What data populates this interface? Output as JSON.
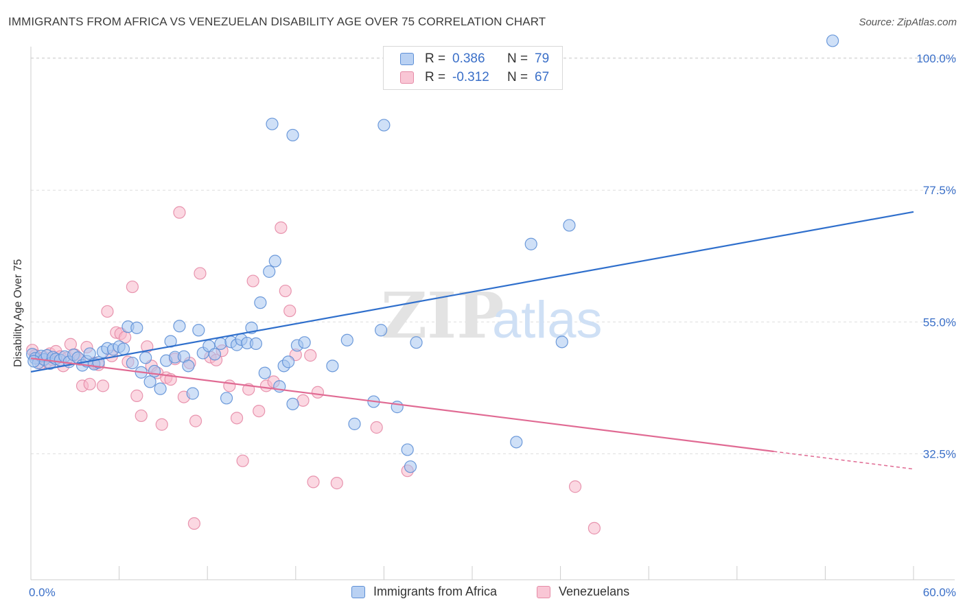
{
  "header": {
    "title": "IMMIGRANTS FROM AFRICA VS VENEZUELAN DISABILITY AGE OVER 75 CORRELATION CHART",
    "source": "Source: ZipAtlas.com"
  },
  "watermark": {
    "zip": "ZIP",
    "atlas": "atlas"
  },
  "legend_top": {
    "rows": [
      {
        "r_label": "R =",
        "r_value": "0.386",
        "n_label": "N =",
        "n_value": "79"
      },
      {
        "r_label": "R =",
        "r_value": "-0.312",
        "n_label": "N =",
        "n_value": "67"
      }
    ]
  },
  "colors": {
    "africa_fill": "#a8c6f0",
    "africa_stroke": "#5d8fd6",
    "africa_line": "#2f6fcc",
    "venez_fill": "#f7b8cb",
    "venez_stroke": "#e58aa6",
    "venez_line": "#e06a93",
    "tick_label": "#3a6fc8",
    "grid": "#dddddd"
  },
  "chart_data": {
    "type": "scatter",
    "title": "IMMIGRANTS FROM AFRICA VS VENEZUELAN DISABILITY AGE OVER 75 CORRELATION CHART",
    "xlabel": "",
    "ylabel": "Disability Age Over 75",
    "xlim": [
      0,
      60
    ],
    "ylim": [
      11,
      102
    ],
    "x_tick_labels": [
      "0.0%",
      "60.0%"
    ],
    "y_ticks": [
      32.5,
      55.0,
      77.5,
      100.0
    ],
    "y_tick_labels": [
      "32.5%",
      "55.0%",
      "77.5%",
      "100.0%"
    ],
    "grid": true,
    "legend": "top-center and bottom",
    "series": [
      {
        "name": "Immigrants from Africa",
        "trend": {
          "x": [
            0,
            60
          ],
          "y": [
            46.5,
            73.8
          ]
        },
        "points": [
          [
            0.1,
            49.5
          ],
          [
            0.3,
            48.8
          ],
          [
            0.5,
            48.0
          ],
          [
            0.7,
            49.2
          ],
          [
            0.9,
            48.6
          ],
          [
            1.1,
            49.3
          ],
          [
            1.3,
            47.9
          ],
          [
            1.5,
            49.0
          ],
          [
            1.7,
            48.7
          ],
          [
            2.0,
            48.5
          ],
          [
            2.3,
            49.1
          ],
          [
            2.6,
            48.2
          ],
          [
            2.9,
            49.4
          ],
          [
            3.2,
            48.9
          ],
          [
            3.5,
            47.6
          ],
          [
            3.8,
            48.3
          ],
          [
            4.0,
            49.6
          ],
          [
            4.3,
            47.8
          ],
          [
            4.6,
            48.1
          ],
          [
            4.9,
            49.9
          ],
          [
            5.2,
            50.5
          ],
          [
            5.6,
            50.3
          ],
          [
            6.0,
            50.8
          ],
          [
            6.3,
            50.4
          ],
          [
            6.6,
            54.2
          ],
          [
            6.9,
            48.0
          ],
          [
            7.2,
            54.0
          ],
          [
            7.5,
            46.4
          ],
          [
            7.8,
            48.9
          ],
          [
            8.1,
            44.8
          ],
          [
            8.4,
            46.6
          ],
          [
            8.8,
            43.6
          ],
          [
            9.2,
            48.4
          ],
          [
            9.5,
            51.7
          ],
          [
            9.8,
            49.0
          ],
          [
            10.1,
            54.3
          ],
          [
            10.4,
            49.1
          ],
          [
            10.7,
            47.5
          ],
          [
            11.0,
            42.8
          ],
          [
            11.4,
            53.6
          ],
          [
            11.7,
            49.7
          ],
          [
            12.1,
            50.9
          ],
          [
            12.5,
            49.5
          ],
          [
            12.9,
            51.3
          ],
          [
            13.3,
            42.0
          ],
          [
            13.6,
            51.6
          ],
          [
            14.0,
            51.1
          ],
          [
            14.3,
            52.0
          ],
          [
            14.7,
            51.4
          ],
          [
            15.0,
            54.0
          ],
          [
            15.3,
            51.3
          ],
          [
            15.6,
            58.3
          ],
          [
            15.9,
            46.3
          ],
          [
            16.2,
            63.6
          ],
          [
            16.6,
            65.4
          ],
          [
            16.9,
            44.0
          ],
          [
            17.2,
            47.5
          ],
          [
            17.5,
            48.2
          ],
          [
            17.8,
            41.0
          ],
          [
            18.1,
            51.0
          ],
          [
            18.6,
            51.5
          ],
          [
            16.4,
            88.8
          ],
          [
            17.8,
            86.9
          ],
          [
            20.5,
            47.5
          ],
          [
            22.0,
            37.6
          ],
          [
            21.5,
            51.9
          ],
          [
            23.3,
            41.4
          ],
          [
            24.0,
            88.6
          ],
          [
            23.8,
            53.6
          ],
          [
            24.9,
            40.5
          ],
          [
            25.6,
            33.2
          ],
          [
            25.8,
            30.3
          ],
          [
            26.2,
            51.5
          ],
          [
            33.0,
            34.5
          ],
          [
            34.0,
            68.3
          ],
          [
            36.1,
            51.6
          ],
          [
            36.6,
            71.5
          ],
          [
            54.5,
            103.0
          ],
          [
            0.2,
            48.3
          ]
        ]
      },
      {
        "name": "Venezuelans",
        "trend": {
          "x": [
            0,
            50.5
          ],
          "y": [
            48.8,
            32.9
          ]
        },
        "trend_dashed": {
          "x": [
            50.5,
            60
          ],
          "y": [
            32.9,
            29.9
          ]
        },
        "points": [
          [
            0.1,
            50.2
          ],
          [
            0.3,
            49.3
          ],
          [
            0.5,
            48.8
          ],
          [
            0.7,
            47.9
          ],
          [
            0.9,
            49.0
          ],
          [
            1.1,
            48.2
          ],
          [
            1.3,
            49.6
          ],
          [
            1.5,
            48.5
          ],
          [
            1.7,
            50.0
          ],
          [
            2.0,
            49.1
          ],
          [
            2.2,
            47.5
          ],
          [
            2.5,
            48.9
          ],
          [
            2.7,
            51.2
          ],
          [
            3.0,
            49.4
          ],
          [
            3.3,
            48.6
          ],
          [
            3.5,
            44.1
          ],
          [
            3.8,
            50.7
          ],
          [
            4.0,
            44.4
          ],
          [
            4.3,
            48.0
          ],
          [
            4.6,
            47.7
          ],
          [
            4.9,
            44.1
          ],
          [
            5.2,
            56.8
          ],
          [
            5.5,
            49.2
          ],
          [
            5.8,
            53.2
          ],
          [
            6.1,
            53.0
          ],
          [
            6.4,
            52.4
          ],
          [
            6.6,
            48.2
          ],
          [
            6.9,
            61.0
          ],
          [
            7.2,
            42.4
          ],
          [
            7.5,
            39.0
          ],
          [
            7.9,
            50.8
          ],
          [
            8.2,
            47.5
          ],
          [
            8.6,
            46.3
          ],
          [
            8.9,
            37.5
          ],
          [
            9.2,
            45.5
          ],
          [
            9.5,
            45.2
          ],
          [
            9.8,
            48.7
          ],
          [
            10.1,
            73.7
          ],
          [
            10.4,
            42.2
          ],
          [
            10.8,
            48.0
          ],
          [
            11.2,
            38.1
          ],
          [
            11.5,
            63.3
          ],
          [
            11.1,
            20.6
          ],
          [
            12.2,
            49.0
          ],
          [
            12.6,
            48.5
          ],
          [
            13.0,
            50.1
          ],
          [
            13.5,
            44.1
          ],
          [
            14.0,
            38.6
          ],
          [
            14.4,
            31.3
          ],
          [
            14.8,
            43.5
          ],
          [
            15.1,
            62.0
          ],
          [
            15.5,
            39.8
          ],
          [
            16.0,
            44.1
          ],
          [
            16.5,
            44.8
          ],
          [
            17.0,
            71.1
          ],
          [
            17.3,
            60.3
          ],
          [
            17.6,
            56.9
          ],
          [
            18.0,
            49.4
          ],
          [
            18.5,
            41.6
          ],
          [
            19.0,
            49.3
          ],
          [
            19.5,
            43.0
          ],
          [
            19.2,
            27.7
          ],
          [
            20.8,
            27.5
          ],
          [
            23.5,
            37.0
          ],
          [
            25.6,
            29.6
          ],
          [
            37.0,
            26.9
          ],
          [
            38.3,
            19.8
          ]
        ]
      }
    ]
  },
  "legend_bottom": {
    "items": [
      {
        "label": "Immigrants from Africa"
      },
      {
        "label": "Venezuelans"
      }
    ]
  },
  "axis_text": {
    "ylabel": "Disability Age Over 75",
    "x_left": "0.0%",
    "x_right": "60.0%"
  }
}
